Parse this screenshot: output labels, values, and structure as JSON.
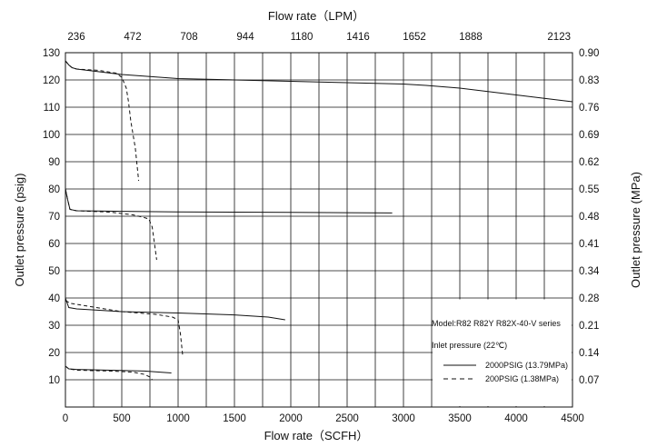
{
  "chart_data": {
    "type": "line",
    "x_bottom": {
      "label": "Flow rate（SCFH）",
      "min": 0,
      "max": 4500,
      "ticks": [
        0,
        500,
        1000,
        1500,
        2000,
        2500,
        3000,
        3500,
        4000,
        4500
      ]
    },
    "x_top": {
      "label": "Flow rate（LPM）",
      "ticks": [
        "236",
        "472",
        "708",
        "944",
        "1180",
        "1416",
        "1652",
        "1888",
        "2123"
      ]
    },
    "y_left": {
      "label": "Outlet  pressure  (psig)",
      "min": 0,
      "max": 130,
      "ticks": [
        10,
        20,
        30,
        40,
        50,
        60,
        70,
        80,
        90,
        100,
        110,
        120,
        130
      ]
    },
    "y_right": {
      "label": "Outlet  pressure  (MPa)",
      "ticks": [
        "0.07",
        "0.14",
        "0.21",
        "0.28",
        "0.34",
        "0.41",
        "0.48",
        "0.55",
        "0.62",
        "0.69",
        "0.76",
        "0.83",
        "0.90"
      ]
    },
    "grid": true,
    "legend": {
      "placement": "bottom-right",
      "model": "Model:R82 R82Y R82X-40-V series",
      "inlet": "Inlet pressure (22℃)",
      "entries": [
        {
          "name": "2000PSIG   (13.79MPa)",
          "dash": "solid"
        },
        {
          "name": "200PSIG   (1.38MPa)",
          "dash": "dashed"
        }
      ]
    },
    "series": [
      {
        "inlet": "2000PSIG",
        "dash": "solid",
        "x": [
          0,
          30,
          60,
          100,
          500,
          1000,
          1500,
          2000,
          2500,
          3000,
          3200,
          3500,
          4000,
          4500
        ],
        "y": [
          127,
          125.5,
          124.5,
          124,
          122,
          120.5,
          120,
          119.5,
          119,
          118.5,
          118,
          117,
          114.5,
          112
        ]
      },
      {
        "inlet": "200PSIG",
        "dash": "dashed",
        "x": [
          0,
          30,
          60,
          100,
          300,
          450,
          500,
          540,
          560,
          580,
          620,
          650
        ],
        "y": [
          127,
          125.5,
          124.5,
          124,
          123.5,
          122.5,
          121,
          117,
          112,
          105,
          95,
          83
        ]
      },
      {
        "inlet": "2000PSIG",
        "dash": "solid",
        "x": [
          0,
          20,
          40,
          100,
          500,
          1000,
          1500,
          2000,
          2500,
          2900
        ],
        "y": [
          80,
          76,
          72.5,
          72,
          71.8,
          71.6,
          71.5,
          71.4,
          71.3,
          71.2
        ]
      },
      {
        "inlet": "200PSIG",
        "dash": "dashed",
        "x": [
          0,
          20,
          40,
          100,
          400,
          600,
          700,
          740,
          770,
          790,
          810
        ],
        "y": [
          80,
          76,
          72.5,
          72,
          71.5,
          70.5,
          69.5,
          69,
          66,
          60,
          54
        ]
      },
      {
        "inlet": "2000PSIG",
        "dash": "solid",
        "x": [
          0,
          30,
          100,
          500,
          1000,
          1500,
          1800,
          1950
        ],
        "y": [
          40,
          36.5,
          36,
          35,
          34.5,
          33.8,
          33,
          32
        ]
      },
      {
        "inlet": "200PSIG",
        "dash": "dashed",
        "x": [
          0,
          50,
          200,
          500,
          800,
          950,
          1000,
          1020,
          1040
        ],
        "y": [
          39,
          38,
          37,
          35,
          34,
          33,
          32,
          27,
          19
        ]
      },
      {
        "inlet": "2000PSIG",
        "dash": "solid",
        "x": [
          0,
          30,
          100,
          400,
          700,
          940
        ],
        "y": [
          15,
          14,
          13.8,
          13.5,
          13.2,
          12.5
        ]
      },
      {
        "inlet": "200PSIG",
        "dash": "dashed",
        "x": [
          0,
          30,
          100,
          400,
          600,
          700,
          750,
          770
        ],
        "y": [
          15,
          14,
          13.5,
          13.2,
          12.8,
          12,
          11,
          10
        ]
      }
    ]
  }
}
